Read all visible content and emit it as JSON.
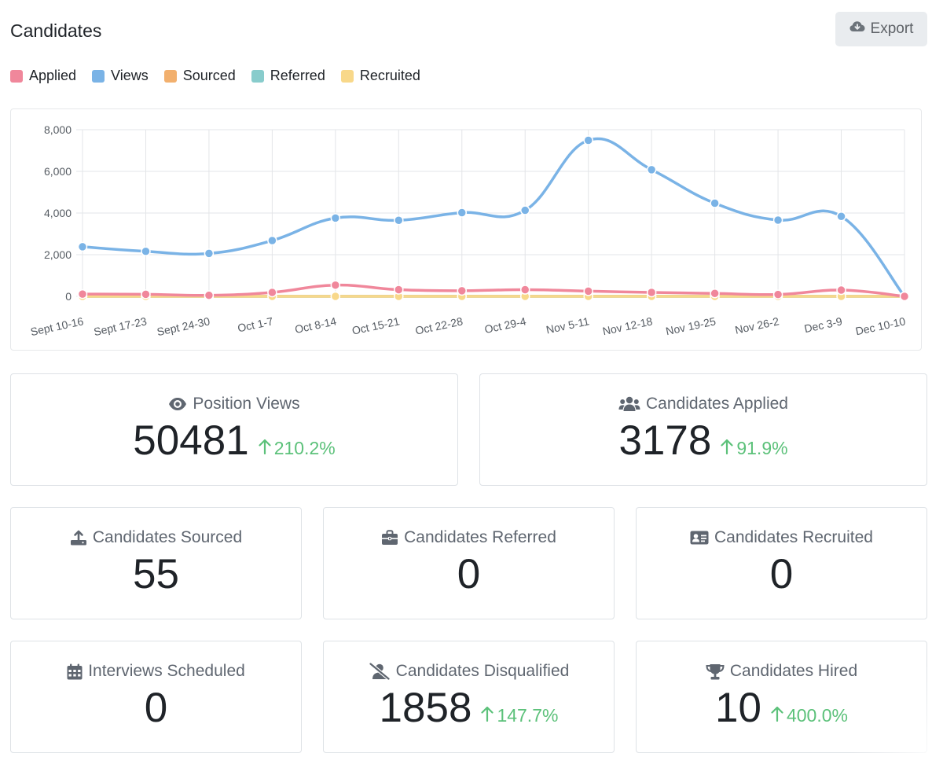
{
  "header": {
    "title": "Candidates",
    "export_label": "Export",
    "export_icon": "cloud-download-icon"
  },
  "legend": [
    {
      "label": "Applied",
      "color": "#f0879b"
    },
    {
      "label": "Views",
      "color": "#7ab3e6"
    },
    {
      "label": "Sourced",
      "color": "#f2b06e"
    },
    {
      "label": "Referred",
      "color": "#88cccc"
    },
    {
      "label": "Recruited",
      "color": "#f8d88a"
    }
  ],
  "chart_data": {
    "type": "line",
    "title": "",
    "xlabel": "",
    "ylabel": "",
    "ylim": [
      0,
      8000
    ],
    "yticks": [
      0,
      2000,
      4000,
      6000,
      8000
    ],
    "ytick_labels": [
      "0",
      "2,000",
      "4,000",
      "6,000",
      "8,000"
    ],
    "grid": true,
    "categories": [
      "Sept 10-16",
      "Sept 17-23",
      "Sept 24-30",
      "Oct 1-7",
      "Oct 8-14",
      "Oct 15-21",
      "Oct 22-28",
      "Oct 29-4",
      "Nov 5-11",
      "Nov 12-18",
      "Nov 19-25",
      "Nov 26-2",
      "Dec 3-9",
      "Dec 10-10"
    ],
    "series": [
      {
        "name": "Views",
        "color": "#7ab3e6",
        "values": [
          2380,
          2160,
          2060,
          2680,
          3760,
          3650,
          4020,
          4130,
          7490,
          6080,
          4470,
          3660,
          3840,
          0
        ]
      },
      {
        "name": "Sourced",
        "color": "#f2b06e",
        "values": [
          5,
          5,
          5,
          5,
          5,
          5,
          5,
          5,
          5,
          5,
          5,
          5,
          5,
          0
        ]
      },
      {
        "name": "Referred",
        "color": "#88cccc",
        "values": [
          0,
          0,
          0,
          0,
          0,
          0,
          0,
          0,
          0,
          0,
          0,
          0,
          0,
          0
        ]
      },
      {
        "name": "Recruited",
        "color": "#f8d88a",
        "values": [
          0,
          0,
          0,
          0,
          0,
          0,
          0,
          0,
          0,
          0,
          0,
          0,
          0,
          0
        ]
      },
      {
        "name": "Applied",
        "color": "#f0879b",
        "values": [
          110,
          100,
          50,
          190,
          540,
          320,
          270,
          320,
          250,
          190,
          140,
          90,
          300,
          0
        ]
      }
    ]
  },
  "stats": {
    "views": {
      "label": "Position Views",
      "icon": "eye-icon",
      "value": "50481",
      "change": "210.2%"
    },
    "applied": {
      "label": "Candidates Applied",
      "icon": "users-icon",
      "value": "3178",
      "change": "91.9%"
    },
    "sourced": {
      "label": "Candidates Sourced",
      "icon": "upload-icon",
      "value": "55"
    },
    "referred": {
      "label": "Candidates Referred",
      "icon": "briefcase-icon",
      "value": "0"
    },
    "recruited": {
      "label": "Candidates Recruited",
      "icon": "id-card-icon",
      "value": "0"
    },
    "interviews": {
      "label": "Interviews Scheduled",
      "icon": "calendar-icon",
      "value": "0"
    },
    "disqualified": {
      "label": "Candidates Disqualified",
      "icon": "user-slash-icon",
      "value": "1858",
      "change": "147.7%"
    },
    "hired": {
      "label": "Candidates Hired",
      "icon": "trophy-icon",
      "value": "10",
      "change": "400.0%"
    }
  }
}
